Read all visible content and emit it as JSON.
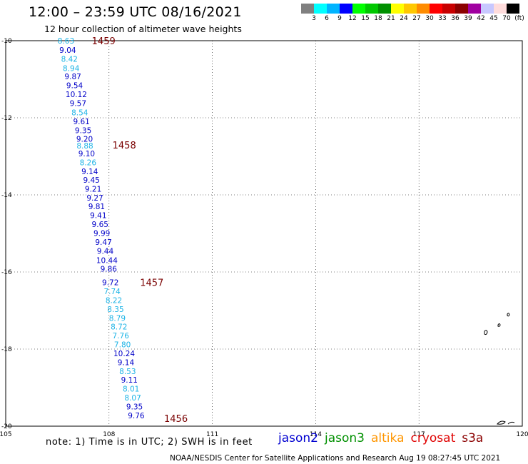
{
  "header": {
    "title": "12:00 – 23:59 UTC 08/16/2021",
    "subtitle": "12 hour collection of altimeter wave heights"
  },
  "legend": {
    "colors": [
      "#808080",
      "#00ffff",
      "#00b4ff",
      "#0000ff",
      "#00ff00",
      "#00c800",
      "#009000",
      "#ffff00",
      "#ffc800",
      "#ff8c00",
      "#ff0000",
      "#c80000",
      "#8b0000",
      "#a000a0",
      "#c8c8ff",
      "#ffdcdc",
      "#000000"
    ],
    "labels": [
      "3",
      "6",
      "9",
      "12",
      "15",
      "18",
      "21",
      "24",
      "27",
      "30",
      "33",
      "36",
      "39",
      "42",
      "45",
      "70",
      "(ft)"
    ]
  },
  "map": {
    "lon_ticks": [
      "105",
      "108",
      "111",
      "114",
      "117",
      "120"
    ],
    "lat_ticks": [
      "-10",
      "-12",
      "-14",
      "-16",
      "-18",
      "-20"
    ],
    "lon_range": [
      105,
      120
    ],
    "lat_range": [
      -10,
      -20
    ],
    "grid": true,
    "color_by_value": [
      {
        "max": 8.99,
        "color": "#1eb4e6"
      },
      {
        "max": 99,
        "color": "#0000c8"
      }
    ],
    "pass_labels": [
      {
        "text": "1459",
        "lon": 107.5,
        "lat": -10.0
      },
      {
        "text": "1458",
        "lon": 108.1,
        "lat": -12.7
      },
      {
        "text": "1457",
        "lon": 108.9,
        "lat": -16.27
      },
      {
        "text": "1456",
        "lon": 109.6,
        "lat": -19.8
      }
    ],
    "observations": [
      {
        "v": "8.63",
        "lon": 106.75,
        "lat": -10.0
      },
      {
        "v": "9.04",
        "lon": 106.8,
        "lat": -10.24
      },
      {
        "v": "8.42",
        "lon": 106.85,
        "lat": -10.47
      },
      {
        "v": "8.94",
        "lon": 106.9,
        "lat": -10.71
      },
      {
        "v": "9.87",
        "lon": 106.95,
        "lat": -10.93
      },
      {
        "v": "9.54",
        "lon": 107.0,
        "lat": -11.16
      },
      {
        "v": "10.12",
        "lon": 107.05,
        "lat": -11.39
      },
      {
        "v": "9.57",
        "lon": 107.1,
        "lat": -11.62
      },
      {
        "v": "8.54",
        "lon": 107.15,
        "lat": -11.86
      },
      {
        "v": "9.61",
        "lon": 107.2,
        "lat": -12.09
      },
      {
        "v": "9.35",
        "lon": 107.25,
        "lat": -12.32
      },
      {
        "v": "9.20",
        "lon": 107.29,
        "lat": -12.55
      },
      {
        "v": "8.88",
        "lon": 107.3,
        "lat": -12.72
      },
      {
        "v": "9.10",
        "lon": 107.35,
        "lat": -12.93
      },
      {
        "v": "8.26",
        "lon": 107.39,
        "lat": -13.16
      },
      {
        "v": "9.14",
        "lon": 107.44,
        "lat": -13.39
      },
      {
        "v": "9.45",
        "lon": 107.49,
        "lat": -13.61
      },
      {
        "v": "9.21",
        "lon": 107.54,
        "lat": -13.84
      },
      {
        "v": "9.27",
        "lon": 107.59,
        "lat": -14.07
      },
      {
        "v": "9.81",
        "lon": 107.64,
        "lat": -14.3
      },
      {
        "v": "9.41",
        "lon": 107.69,
        "lat": -14.53
      },
      {
        "v": "9.65",
        "lon": 107.74,
        "lat": -14.76
      },
      {
        "v": "9.99",
        "lon": 107.79,
        "lat": -14.99
      },
      {
        "v": "9.47",
        "lon": 107.84,
        "lat": -15.22
      },
      {
        "v": "9.44",
        "lon": 107.89,
        "lat": -15.45
      },
      {
        "v": "10.44",
        "lon": 107.94,
        "lat": -15.69
      },
      {
        "v": "9.86",
        "lon": 107.99,
        "lat": -15.92
      },
      {
        "v": "9.72",
        "lon": 108.04,
        "lat": -16.27
      },
      {
        "v": "7.74",
        "lon": 108.09,
        "lat": -16.5
      },
      {
        "v": "8.22",
        "lon": 108.14,
        "lat": -16.73
      },
      {
        "v": "8.35",
        "lon": 108.19,
        "lat": -16.96
      },
      {
        "v": "8.79",
        "lon": 108.24,
        "lat": -17.19
      },
      {
        "v": "8.72",
        "lon": 108.29,
        "lat": -17.42
      },
      {
        "v": "7.76",
        "lon": 108.34,
        "lat": -17.65
      },
      {
        "v": "7.80",
        "lon": 108.39,
        "lat": -17.88
      },
      {
        "v": "10.24",
        "lon": 108.44,
        "lat": -18.11
      },
      {
        "v": "9.14",
        "lon": 108.49,
        "lat": -18.34
      },
      {
        "v": "8.53",
        "lon": 108.54,
        "lat": -18.57
      },
      {
        "v": "9.11",
        "lon": 108.59,
        "lat": -18.8
      },
      {
        "v": "8.01",
        "lon": 108.64,
        "lat": -19.03
      },
      {
        "v": "8.07",
        "lon": 108.69,
        "lat": -19.26
      },
      {
        "v": "9.35",
        "lon": 108.74,
        "lat": -19.49
      },
      {
        "v": "9.76",
        "lon": 108.79,
        "lat": -19.72
      }
    ]
  },
  "footer": {
    "note": "note:  1) Time is in UTC;  2) SWH is in feet",
    "credit": "NOAA/NESDIS Center for Satellite Applications and Research    Aug 19 08:27:45 UTC 2021",
    "satellites": [
      {
        "name": "jason2",
        "color": "#0000d0"
      },
      {
        "name": "jason3",
        "color": "#009000"
      },
      {
        "name": "altika",
        "color": "#ff9600"
      },
      {
        "name": "cryosat",
        "color": "#e00000"
      },
      {
        "name": "s3a",
        "color": "#8b0000"
      }
    ]
  }
}
